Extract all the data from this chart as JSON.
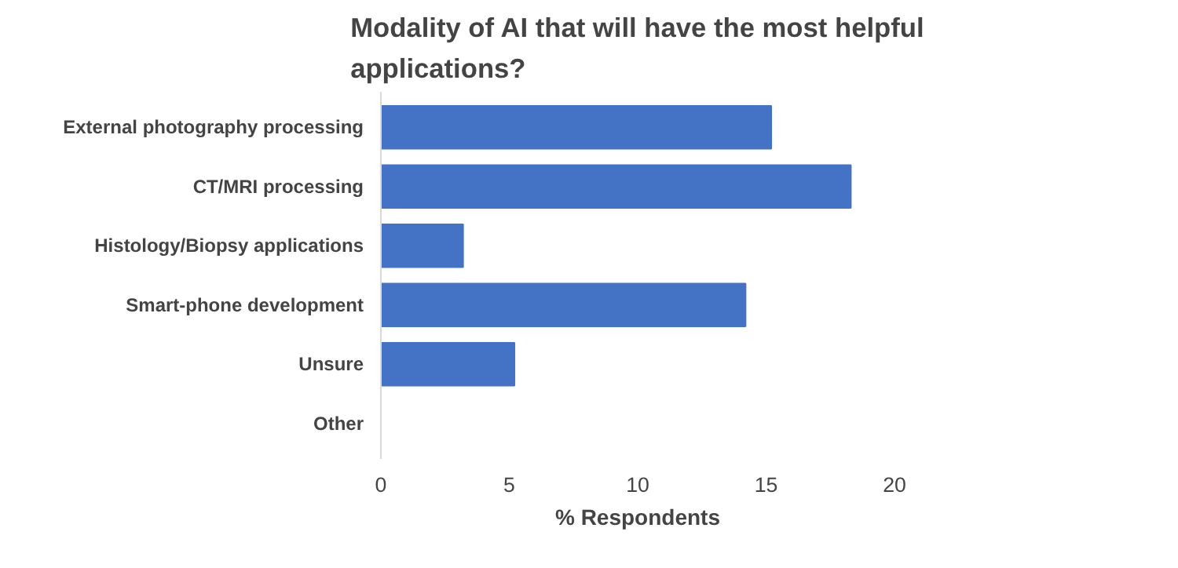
{
  "chart_data": {
    "type": "bar",
    "orientation": "horizontal",
    "title": "Modality of AI that will have the most helpful applications?",
    "xlabel": "% Respondents",
    "categories": [
      "External photography processing",
      "CT/MRI processing",
      "Histology/Biopsy applications",
      "Smart-phone development",
      "Unsure",
      "Other"
    ],
    "values": [
      15.2,
      18.3,
      3.2,
      14.2,
      5.2,
      0
    ],
    "color": "#4472c4",
    "xlim": [
      0,
      20
    ],
    "xticks": [
      0,
      5,
      10,
      15,
      20
    ],
    "grid": false
  }
}
